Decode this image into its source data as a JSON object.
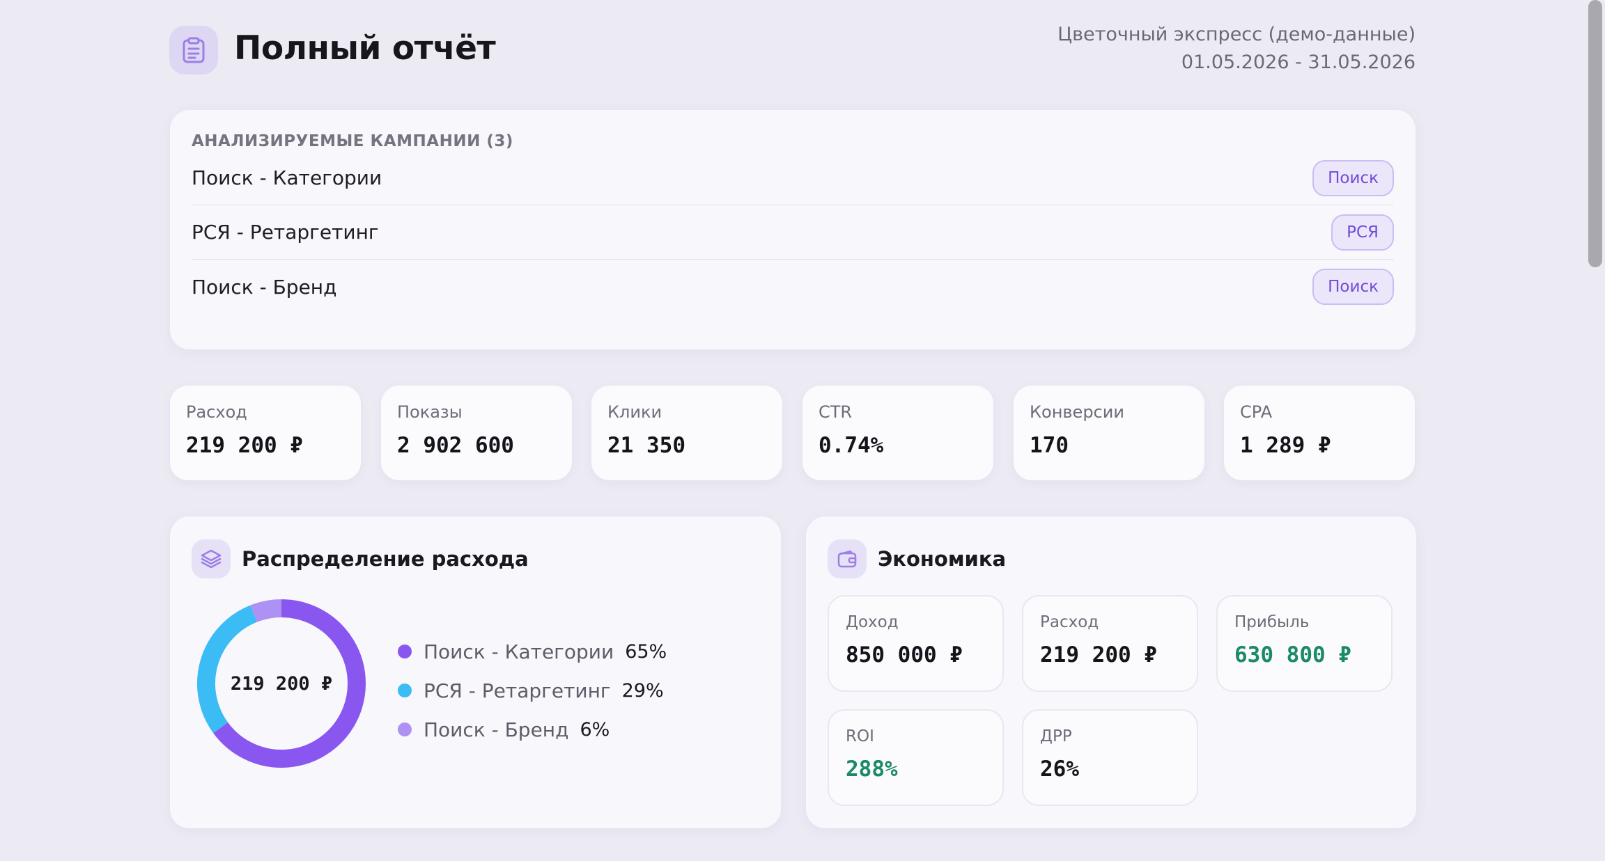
{
  "header": {
    "title": "Полный отчёт",
    "icon": "clipboard-icon",
    "client": "Цветочный экспресс (демо-данные)",
    "period": "01.05.2026 - 31.05.2026"
  },
  "campaigns": {
    "heading": "АНАЛИЗИРУЕМЫЕ КАМПАНИИ (3)",
    "items": [
      {
        "name": "Поиск - Категории",
        "type": "Поиск"
      },
      {
        "name": "РСЯ - Ретаргетинг",
        "type": "РСЯ"
      },
      {
        "name": "Поиск - Бренд",
        "type": "Поиск"
      }
    ]
  },
  "kpis": [
    {
      "label": "Расход",
      "value": "219 200 ₽"
    },
    {
      "label": "Показы",
      "value": "2 902 600"
    },
    {
      "label": "Клики",
      "value": "21 350"
    },
    {
      "label": "CTR",
      "value": "0.74%"
    },
    {
      "label": "Конверсии",
      "value": "170"
    },
    {
      "label": "CPA",
      "value": "1 289 ₽"
    }
  ],
  "distribution": {
    "title": "Распределение расхода",
    "icon": "layers-icon",
    "total": "219 200 ₽",
    "segments": [
      {
        "name": "Поиск - Категории",
        "pct_label": "65%",
        "value": 65,
        "color": "#8957ef"
      },
      {
        "name": "РСЯ - Ретаргетинг",
        "pct_label": "29%",
        "value": 29,
        "color": "#3bbcf4"
      },
      {
        "name": "Поиск - Бренд",
        "pct_label": "6%",
        "value": 6,
        "color": "#ad92f4"
      }
    ]
  },
  "economics": {
    "title": "Экономика",
    "icon": "wallet-icon",
    "items": [
      {
        "label": "Доход",
        "value": "850 000 ₽",
        "positive": false
      },
      {
        "label": "Расход",
        "value": "219 200 ₽",
        "positive": false
      },
      {
        "label": "Прибыль",
        "value": "630 800 ₽",
        "positive": true
      },
      {
        "label": "ROI",
        "value": "288%",
        "positive": true
      },
      {
        "label": "ДРР",
        "value": "26%",
        "positive": false
      }
    ]
  },
  "colors": {
    "accent": "#8957ef",
    "positive": "#1b8a66",
    "background": "#eceaf3"
  }
}
